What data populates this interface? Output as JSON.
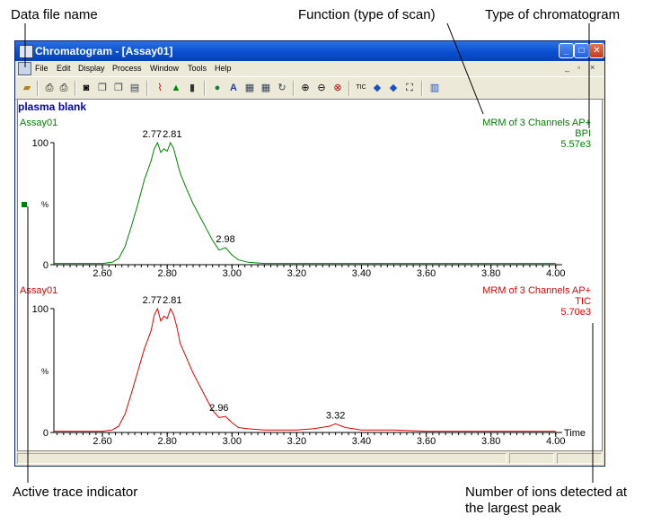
{
  "annotations": {
    "data_file_name": "Data file name",
    "function": "Function (type of scan)",
    "chromatogram_type": "Type of chromatogram",
    "active_trace": "Active trace indicator",
    "ions_line1": "Number of ions detected at",
    "ions_line2": "the largest peak"
  },
  "window": {
    "title": "Chromatogram - [Assay01]",
    "menu": [
      "File",
      "Edit",
      "Display",
      "Process",
      "Window",
      "Tools",
      "Help"
    ]
  },
  "sample_name": "plasma blank",
  "traces": [
    {
      "file": "Assay01",
      "function": "MRM of 3 Channels AP+",
      "type": "BPI",
      "intensity": "5.57e3",
      "color": "#008000",
      "y_tick_top": "100",
      "y_tick_bottom": "0",
      "y_axis_mark": "%",
      "x_axis_label": "",
      "peak_labels": [
        "2.77",
        "2.81",
        "2.98"
      ]
    },
    {
      "file": "Assay01",
      "function": "MRM of 3 Channels AP+",
      "type": "TIC",
      "intensity": "5.70e3",
      "color": "#e00000",
      "y_tick_top": "100",
      "y_tick_bottom": "0",
      "y_axis_mark": "%",
      "x_axis_label": "Time",
      "peak_labels": [
        "2.77",
        "2.81",
        "2.96",
        "3.32"
      ]
    }
  ],
  "chart_data": [
    {
      "type": "line",
      "name": "BPI trace",
      "xlim": [
        2.45,
        4.02
      ],
      "ylim": [
        0,
        100
      ],
      "xticks": [
        "2.60",
        "2.80",
        "3.00",
        "3.20",
        "3.40",
        "3.60",
        "3.80",
        "4.00"
      ],
      "x": [
        2.45,
        2.5,
        2.55,
        2.6,
        2.63,
        2.65,
        2.67,
        2.69,
        2.71,
        2.73,
        2.75,
        2.76,
        2.77,
        2.78,
        2.79,
        2.8,
        2.81,
        2.82,
        2.83,
        2.84,
        2.86,
        2.88,
        2.9,
        2.92,
        2.94,
        2.96,
        2.98,
        3.0,
        3.02,
        3.05,
        3.1,
        3.2,
        3.3,
        3.4,
        3.5,
        3.6,
        3.7,
        3.8,
        3.9,
        4.0
      ],
      "y": [
        1,
        1,
        1,
        1,
        2,
        5,
        15,
        32,
        50,
        70,
        85,
        95,
        100,
        92,
        95,
        93,
        100,
        95,
        85,
        75,
        62,
        50,
        40,
        30,
        20,
        12,
        14,
        8,
        4,
        2,
        1,
        1,
        1,
        1,
        1,
        1,
        1,
        1,
        1,
        1
      ]
    },
    {
      "type": "line",
      "name": "TIC trace",
      "xlim": [
        2.45,
        4.02
      ],
      "ylim": [
        0,
        100
      ],
      "xticks": [
        "2.60",
        "2.80",
        "3.00",
        "3.20",
        "3.40",
        "3.60",
        "3.80",
        "4.00"
      ],
      "x": [
        2.45,
        2.5,
        2.55,
        2.6,
        2.63,
        2.65,
        2.67,
        2.69,
        2.71,
        2.73,
        2.75,
        2.76,
        2.77,
        2.78,
        2.79,
        2.8,
        2.81,
        2.82,
        2.83,
        2.84,
        2.86,
        2.88,
        2.9,
        2.92,
        2.94,
        2.96,
        2.98,
        3.0,
        3.02,
        3.05,
        3.1,
        3.2,
        3.25,
        3.3,
        3.32,
        3.35,
        3.4,
        3.5,
        3.6,
        3.7,
        3.8,
        3.9,
        4.0
      ],
      "y": [
        1,
        1,
        1,
        1,
        2,
        5,
        15,
        32,
        50,
        68,
        82,
        95,
        100,
        90,
        94,
        92,
        100,
        95,
        85,
        72,
        60,
        48,
        38,
        28,
        18,
        12,
        13,
        8,
        4,
        3,
        2,
        2,
        3,
        5,
        7,
        4,
        2,
        2,
        1,
        1,
        1,
        1,
        1
      ]
    }
  ]
}
